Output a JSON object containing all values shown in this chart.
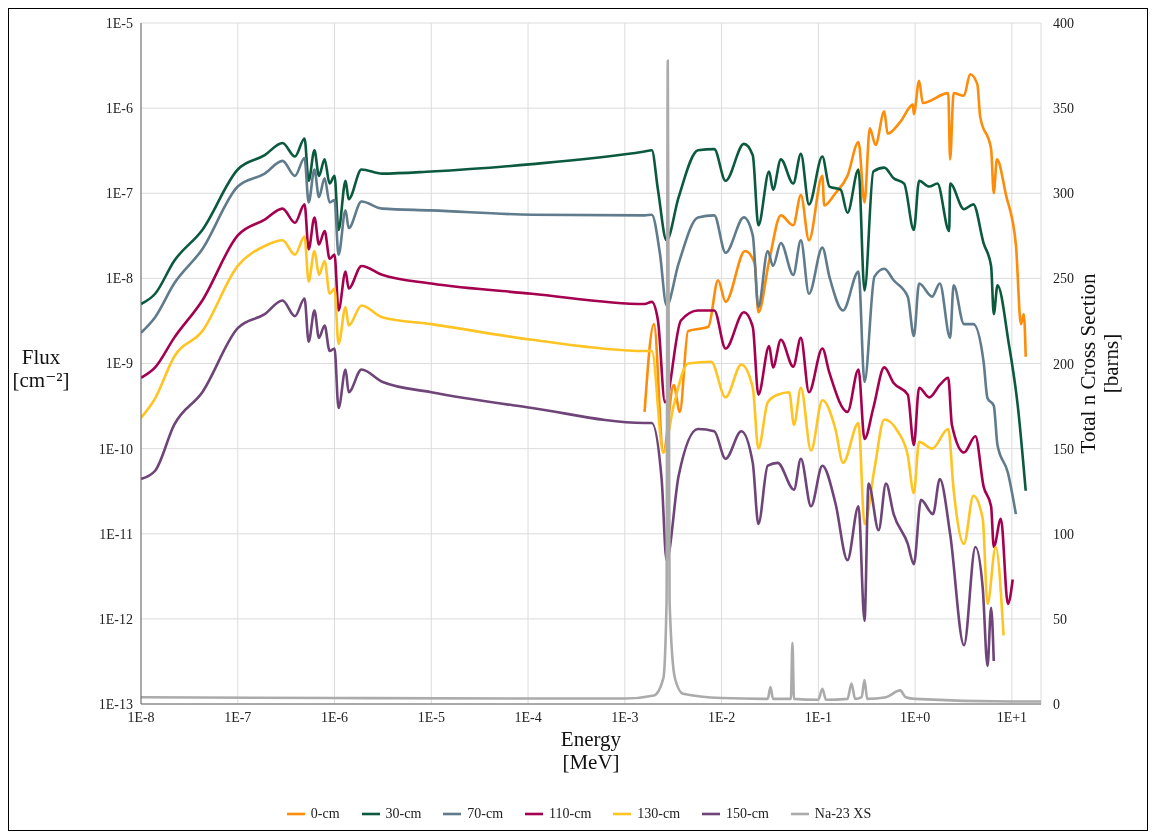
{
  "chart_data": {
    "type": "line",
    "xlabel": "Energy\n[MeV]",
    "ylabel": "Flux\n[cm⁻²]",
    "y2label": "Total n Cross Section\n[barns]",
    "log": "xy",
    "grid": true,
    "legend": "bottom",
    "marker": "none",
    "line_style": "solid",
    "xlim": [
      1e-08,
      20
    ],
    "xticks": [
      {
        "value": 1e-08,
        "label": "1E-8"
      },
      {
        "value": 1e-07,
        "label": "1E-7"
      },
      {
        "value": 1e-06,
        "label": "1E-6"
      },
      {
        "value": 1e-05,
        "label": "1E-5"
      },
      {
        "value": 0.0001,
        "label": "1E-4"
      },
      {
        "value": 0.001,
        "label": "1E-3"
      },
      {
        "value": 0.01,
        "label": "1E-2"
      },
      {
        "value": 0.1,
        "label": "1E-1"
      },
      {
        "value": 1,
        "label": "1E+0"
      },
      {
        "value": 10,
        "label": "1E+1"
      }
    ],
    "ylim": [
      1e-13,
      1e-05
    ],
    "yticks": [
      {
        "value": 1e-13,
        "label": "1E-13"
      },
      {
        "value": 1e-12,
        "label": "1E-12"
      },
      {
        "value": 1e-11,
        "label": "1E-11"
      },
      {
        "value": 1e-10,
        "label": "1E-10"
      },
      {
        "value": 1e-09,
        "label": "1E-9"
      },
      {
        "value": 1e-08,
        "label": "1E-8"
      },
      {
        "value": 1e-07,
        "label": "1E-7"
      },
      {
        "value": 1e-06,
        "label": "1E-6"
      },
      {
        "value": 1e-05,
        "label": "1E-5"
      }
    ],
    "y2lim": [
      0,
      400
    ],
    "y2ticks": [
      0,
      50,
      100,
      150,
      200,
      250,
      300,
      350,
      400
    ],
    "series": [
      {
        "name": "0-cm",
        "color": "#fd8c0a",
        "x": [
          0.0016,
          0.002,
          0.0025,
          0.0032,
          0.0037,
          0.0045,
          0.0073,
          0.0092,
          0.011,
          0.0175,
          0.022,
          0.024,
          0.031,
          0.041,
          0.055,
          0.066,
          0.08,
          0.11,
          0.115,
          0.15,
          0.2,
          0.26,
          0.3,
          0.34,
          0.39,
          0.48,
          0.52,
          0.71,
          0.95,
          0.97,
          1.1,
          1.2,
          2.2,
          2.3,
          2.5,
          3.2,
          3.7,
          4.4,
          4.7,
          6.1,
          6.5,
          7.0,
          8.7,
          11,
          12.4,
          13.3,
          13.9
        ],
        "values": [
          2.7e-10,
          2.9e-09,
          9e-11,
          5.6e-10,
          2.7e-10,
          2.4e-09,
          2.7e-09,
          9.5e-09,
          5.3e-09,
          2.1e-08,
          1.5e-08,
          4e-09,
          1.6e-08,
          5.5e-08,
          4.2e-08,
          9.5e-08,
          2.8e-08,
          1.6e-07,
          7.2e-08,
          1e-07,
          1.6e-07,
          4e-07,
          7.8e-08,
          5.8e-07,
          3.7e-07,
          9.2e-07,
          5e-07,
          7e-07,
          1.1e-06,
          8.5e-07,
          2.1e-06,
          1.15e-06,
          1.5e-06,
          2.5e-07,
          1.5e-06,
          1.4e-06,
          2.5e-06,
          1.9e-06,
          8e-07,
          3.3e-07,
          1e-07,
          2.5e-07,
          9.5e-08,
          2.5e-08,
          2.9e-09,
          3.8e-09,
          1.2e-09
        ]
      },
      {
        "name": "30-cm",
        "color": "#0b5a3e",
        "x": [
          1e-08,
          1.4e-08,
          2.2e-08,
          4.3e-08,
          1e-07,
          1.9e-07,
          2.9e-07,
          3.9e-07,
          4.9e-07,
          5.4e-07,
          6.2e-07,
          6.9e-07,
          7.9e-07,
          8.9e-07,
          1e-06,
          1.1e-06,
          1.3e-06,
          1.4e-06,
          1.9e-06,
          3.1e-06,
          1e-05,
          0.00011,
          0.0016,
          0.0019,
          0.0022,
          0.0027,
          0.0036,
          0.0057,
          0.0084,
          0.011,
          0.017,
          0.021,
          0.024,
          0.031,
          0.034,
          0.041,
          0.055,
          0.066,
          0.08,
          0.11,
          0.13,
          0.17,
          0.2,
          0.26,
          0.3,
          0.37,
          0.48,
          0.6,
          0.77,
          0.97,
          1.1,
          1.4,
          1.7,
          2.25,
          2.3,
          3.2,
          4.0,
          5.1,
          6.1,
          6.5,
          7.1,
          9.3,
          11.5,
          13.9
        ],
        "values": [
          5e-09,
          6.6e-09,
          1.6e-08,
          3.7e-08,
          1.9e-07,
          2.8e-07,
          3.9e-07,
          2.7e-07,
          4.4e-07,
          1.4e-07,
          3.2e-07,
          1.6e-07,
          2.5e-07,
          1.3e-07,
          1.6e-07,
          3.7e-08,
          1.4e-07,
          8.5e-08,
          1.9e-07,
          1.7e-07,
          1.8e-07,
          2.2e-07,
          3.1e-07,
          3.2e-07,
          1.1e-07,
          2.8e-08,
          9e-08,
          3.2e-07,
          3.3e-07,
          1.4e-07,
          3.8e-07,
          2.8e-07,
          4.2e-08,
          1.8e-07,
          1.1e-07,
          2.5e-07,
          1.3e-07,
          2.9e-07,
          7.4e-08,
          2.7e-07,
          1.2e-07,
          1.1e-07,
          5.9e-08,
          1.9e-07,
          7.2e-09,
          1.8e-07,
          2e-07,
          1.5e-07,
          1.3e-07,
          3.7e-08,
          1.4e-07,
          1.2e-07,
          1.3e-07,
          3.6e-08,
          1.3e-07,
          6.5e-08,
          7.4e-08,
          2.6e-08,
          1.4e-08,
          3.8e-09,
          8.3e-09,
          1.7e-09,
          3.2e-10,
          3.2e-11
        ]
      },
      {
        "name": "70-cm",
        "color": "#5f7b8c",
        "x": [
          1e-08,
          1.4e-08,
          2.2e-08,
          4.3e-08,
          1e-07,
          1.9e-07,
          2.9e-07,
          3.9e-07,
          4.9e-07,
          5.4e-07,
          6.2e-07,
          6.9e-07,
          7.9e-07,
          8.9e-07,
          1e-06,
          1.1e-06,
          1.3e-06,
          1.4e-06,
          1.9e-06,
          3.1e-06,
          1e-05,
          0.00011,
          0.0016,
          0.0019,
          0.0023,
          0.0027,
          0.0036,
          0.0057,
          0.0084,
          0.011,
          0.017,
          0.021,
          0.024,
          0.03,
          0.034,
          0.041,
          0.055,
          0.066,
          0.08,
          0.11,
          0.13,
          0.18,
          0.26,
          0.3,
          0.38,
          0.48,
          0.6,
          0.84,
          0.97,
          1.1,
          1.5,
          1.8,
          2.3,
          2.5,
          3.2,
          4.0,
          5.1,
          5.6,
          6.5,
          7.1,
          9.1,
          11
        ],
        "values": [
          2.3e-09,
          3.5e-09,
          8.7e-09,
          2.2e-08,
          1.2e-07,
          1.7e-07,
          2.4e-07,
          1.6e-07,
          2.6e-07,
          7.8e-08,
          1.9e-07,
          9e-08,
          1.5e-07,
          7.8e-08,
          8.3e-08,
          1.9e-08,
          6.3e-08,
          3.9e-08,
          8e-08,
          6.6e-08,
          6.3e-08,
          5.6e-08,
          5.5e-08,
          5.6e-08,
          2e-08,
          4.8e-09,
          1.5e-08,
          5.2e-08,
          5.5e-08,
          2e-08,
          5.2e-08,
          3.2e-08,
          4.6e-09,
          2.1e-08,
          1.4e-08,
          2.6e-08,
          1.1e-08,
          2.8e-08,
          6.6e-09,
          2.3e-08,
          1.05e-08,
          4.2e-09,
          1.2e-08,
          6.1e-10,
          1.05e-08,
          1.3e-08,
          9.5e-09,
          6.1e-09,
          2.1e-09,
          8.7e-09,
          6.1e-09,
          8.7e-09,
          2e-09,
          8.3e-09,
          2.9e-09,
          2.9e-09,
          1.05e-09,
          3.9e-10,
          3.2e-10,
          1.1e-10,
          5.2e-11,
          1.7e-11
        ]
      },
      {
        "name": "110-cm",
        "color": "#a5004f",
        "x": [
          1e-08,
          1.4e-08,
          2.2e-08,
          4.3e-08,
          1e-07,
          1.9e-07,
          2.9e-07,
          3.9e-07,
          4.9e-07,
          5.4e-07,
          6.2e-07,
          6.9e-07,
          7.9e-07,
          8.9e-07,
          1e-06,
          1.1e-06,
          1.3e-06,
          1.4e-06,
          1.9e-06,
          3.1e-06,
          1e-05,
          0.00011,
          0.0016,
          0.0019,
          0.0022,
          0.0026,
          0.0038,
          0.0057,
          0.0084,
          0.011,
          0.017,
          0.021,
          0.024,
          0.031,
          0.034,
          0.041,
          0.055,
          0.066,
          0.08,
          0.11,
          0.13,
          0.2,
          0.26,
          0.3,
          0.37,
          0.48,
          0.6,
          0.84,
          0.97,
          1.1,
          1.4,
          1.8,
          2.2,
          2.4,
          3.2,
          4.2,
          5.1,
          6.1,
          6.5,
          7.7,
          9.1,
          10.2
        ],
        "values": [
          6.8e-10,
          9e-10,
          2e-09,
          5.5e-09,
          3.2e-08,
          4.9e-08,
          6.6e-08,
          4.5e-08,
          7.4e-08,
          2.2e-08,
          5.2e-08,
          2.5e-08,
          3.6e-08,
          1.7e-08,
          1.9e-08,
          4.2e-09,
          1.2e-08,
          7.6e-09,
          1.4e-08,
          1.1e-08,
          8.7e-09,
          6.6e-09,
          5e-09,
          5.3e-09,
          3.2e-09,
          3.5e-10,
          3.2e-09,
          4.2e-09,
          4.2e-09,
          1.5e-09,
          4e-09,
          2.7e-09,
          4.3e-10,
          1.6e-09,
          9e-10,
          1.9e-09,
          9.2e-10,
          2e-09,
          4.6e-10,
          1.5e-09,
          7.8e-10,
          2.7e-10,
          8.5e-10,
          1.3e-10,
          3e-10,
          9e-10,
          5.9e-10,
          4.3e-10,
          1.1e-10,
          5.2e-10,
          4e-10,
          5.6e-10,
          6.8e-10,
          1.9e-10,
          9e-11,
          1.4e-10,
          3.6e-11,
          2.1e-11,
          7e-12,
          1.5e-11,
          1.5e-12,
          2.9e-12
        ]
      },
      {
        "name": "130-cm",
        "color": "#ffc423",
        "x": [
          1e-08,
          1.4e-08,
          2.2e-08,
          4.3e-08,
          1e-07,
          1.9e-07,
          2.9e-07,
          3.9e-07,
          4.9e-07,
          5.4e-07,
          6.2e-07,
          6.9e-07,
          7.9e-07,
          8.9e-07,
          1e-06,
          1.1e-06,
          1.3e-06,
          1.4e-06,
          1.9e-06,
          3.1e-06,
          1e-05,
          0.00011,
          0.0016,
          0.0019,
          0.0025,
          0.0032,
          0.0045,
          0.0078,
          0.011,
          0.016,
          0.021,
          0.024,
          0.03,
          0.038,
          0.05,
          0.056,
          0.066,
          0.084,
          0.11,
          0.15,
          0.18,
          0.26,
          0.3,
          0.38,
          0.48,
          0.66,
          0.84,
          0.97,
          1.1,
          1.5,
          2.2,
          2.5,
          3.2,
          4.0,
          5.0,
          5.6,
          6.8,
          8.2
        ],
        "values": [
          2.3e-10,
          3.9e-10,
          1.2e-09,
          2.4e-09,
          1.4e-08,
          2.4e-08,
          2.8e-08,
          1.9e-08,
          3.1e-08,
          9.2e-09,
          2.1e-08,
          1.1e-08,
          1.6e-08,
          6.6e-09,
          7.6e-09,
          1.7e-09,
          4.6e-09,
          2.8e-09,
          4.8e-09,
          3.5e-09,
          2.9e-09,
          1.9e-09,
          1.4e-09,
          1.4e-09,
          9e-11,
          3.2e-10,
          1e-09,
          1.05e-09,
          4e-10,
          9.7e-10,
          5.2e-10,
          1e-10,
          3.5e-10,
          4.3e-10,
          4.6e-10,
          1.9e-10,
          5.2e-10,
          9.5e-11,
          3.7e-10,
          1.7e-10,
          6.8e-11,
          2e-10,
          1.3e-11,
          5.8e-11,
          2.2e-10,
          1.6e-10,
          8.3e-11,
          3e-11,
          1.2e-10,
          1e-10,
          1.7e-10,
          3.3e-11,
          7.6e-12,
          2.8e-11,
          1.5e-11,
          1.5e-12,
          7e-12,
          6.4e-13
        ]
      },
      {
        "name": "150-cm",
        "color": "#6e4479",
        "x": [
          1e-08,
          1.4e-08,
          2.2e-08,
          4.3e-08,
          1e-07,
          1.9e-07,
          2.9e-07,
          3.9e-07,
          4.9e-07,
          5.4e-07,
          6.2e-07,
          6.9e-07,
          7.9e-07,
          8.9e-07,
          1e-06,
          1.1e-06,
          1.3e-06,
          1.4e-06,
          1.9e-06,
          3.1e-06,
          1e-05,
          0.00011,
          0.0016,
          0.0019,
          0.0024,
          0.0027,
          0.0036,
          0.0057,
          0.0084,
          0.011,
          0.016,
          0.021,
          0.024,
          0.03,
          0.038,
          0.056,
          0.066,
          0.084,
          0.11,
          0.15,
          0.2,
          0.26,
          0.3,
          0.33,
          0.42,
          0.5,
          0.6,
          0.84,
          0.97,
          1.15,
          1.53,
          1.8,
          2.3,
          3.2,
          4.2,
          5.0,
          5.6,
          6.1,
          6.5
        ],
        "values": [
          4.4e-11,
          5.5e-11,
          1.9e-10,
          4.6e-10,
          2.6e-09,
          3.8e-09,
          5.5e-09,
          3.6e-09,
          5.8e-09,
          1.8e-09,
          4.2e-09,
          2e-09,
          2.8e-09,
          1.4e-09,
          1.5e-09,
          3e-10,
          8.5e-10,
          4.6e-10,
          8.5e-10,
          6.1e-10,
          4.6e-10,
          3e-10,
          2e-10,
          2e-10,
          4.4e-11,
          4.9e-12,
          4.8e-11,
          1.7e-10,
          1.6e-10,
          7.6e-11,
          1.6e-10,
          6.8e-11,
          1.3e-11,
          6.3e-11,
          6.8e-11,
          3.3e-11,
          7.6e-11,
          2.1e-11,
          6.3e-11,
          2.3e-11,
          4.9e-12,
          2.1e-11,
          9.5e-13,
          3.9e-11,
          1.1e-11,
          3.9e-11,
          1.7e-11,
          7.6e-12,
          4.4e-12,
          2.5e-11,
          1.7e-11,
          4.4e-11,
          1e-11,
          4.9e-13,
          7e-12,
          2.3e-12,
          2.8e-13,
          1.35e-12,
          3.2e-13
        ]
      },
      {
        "name": "Na-23 XS",
        "color": "#ababab",
        "axis": "y2",
        "x": [
          1e-08,
          1e-06,
          0.0001,
          0.001,
          0.002,
          0.0025,
          0.0027,
          0.00278,
          0.0029,
          0.0033,
          0.004,
          0.01,
          0.03,
          0.032,
          0.034,
          0.052,
          0.054,
          0.056,
          0.1,
          0.11,
          0.12,
          0.2,
          0.22,
          0.24,
          0.28,
          0.3,
          0.32,
          0.5,
          0.7,
          0.8,
          1,
          10,
          20
        ],
        "values": [
          4,
          3.5,
          3.2,
          3.2,
          5,
          15,
          60,
          378,
          60,
          15,
          6,
          3.5,
          3,
          10,
          3,
          3,
          36,
          3,
          2.5,
          9,
          2.5,
          3,
          12,
          3,
          4,
          14,
          3,
          4,
          8,
          4,
          3,
          1.5,
          1.5
        ]
      }
    ]
  }
}
